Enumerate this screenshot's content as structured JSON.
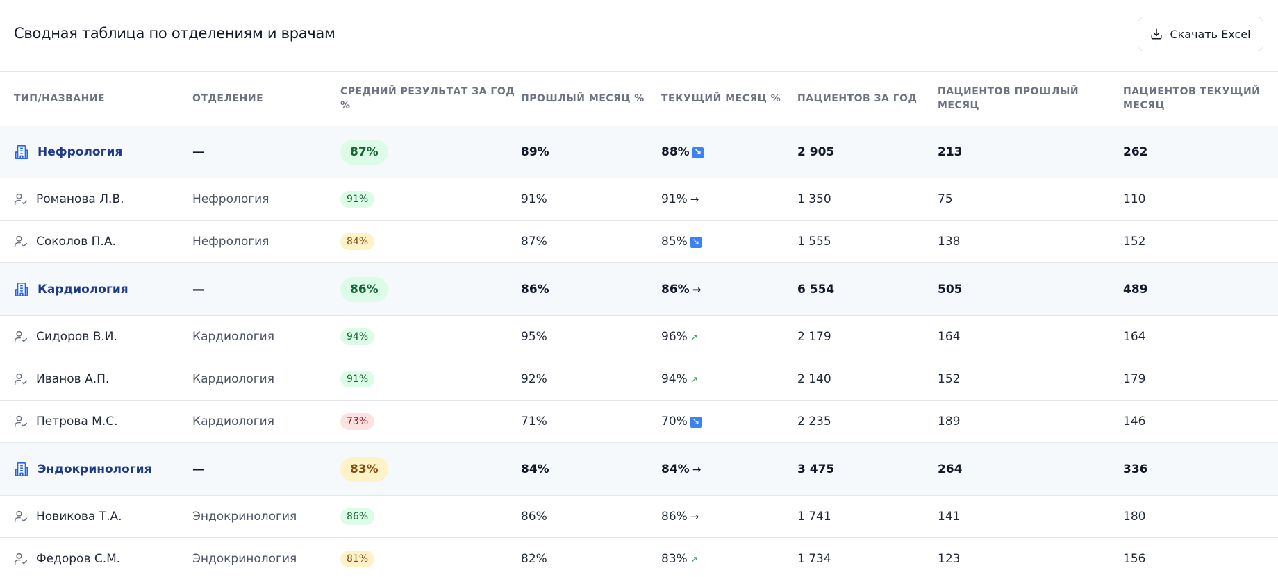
{
  "header": {
    "title": "Сводная таблица по отделениям и врачам",
    "button": "Скачать Excel"
  },
  "table": {
    "columns": [
      "ТИП/НАЗВАНИЕ",
      "ОТДЕЛЕНИЕ",
      "СРЕДНИЙ РЕЗУЛЬТАТ ЗА ГОД %",
      "ПРОШЛЫЙ МЕСЯЦ %",
      "ТЕКУЩИЙ МЕСЯЦ %",
      "ПАЦИЕНТОВ ЗА ГОД",
      "ПАЦИЕНТОВ ПРОШЛЫЙ МЕСЯЦ",
      "ПАЦИЕНТОВ ТЕКУЩИЙ МЕСЯЦ"
    ],
    "rows": [
      {
        "type": "department",
        "name": "Нефрология",
        "department": "—",
        "avg": "87%",
        "last": "89%",
        "current": "88%",
        "trend": "↘",
        "patients_year": "2 905",
        "patients_last": "213",
        "patients_current": "262"
      },
      {
        "type": "doctor",
        "name": "Романова Л.В.",
        "department": "Нефрология",
        "avg": "91%",
        "last": "91%",
        "current": "91%",
        "trend": "→",
        "patients_year": "1 350",
        "patients_last": "75",
        "patients_current": "110"
      },
      {
        "type": "doctor",
        "name": "Соколов П.А.",
        "department": "Нефрология",
        "avg": "84%",
        "last": "87%",
        "current": "85%",
        "trend": "↘",
        "patients_year": "1 555",
        "patients_last": "138",
        "patients_current": "152"
      },
      {
        "type": "department",
        "name": "Кардиология",
        "department": "—",
        "avg": "86%",
        "last": "86%",
        "current": "86%",
        "trend": "→",
        "patients_year": "6 554",
        "patients_last": "505",
        "patients_current": "489"
      },
      {
        "type": "doctor",
        "name": "Сидоров В.И.",
        "department": "Кардиология",
        "avg": "94%",
        "last": "95%",
        "current": "96%",
        "trend": "↗",
        "patients_year": "2 179",
        "patients_last": "164",
        "patients_current": "164"
      },
      {
        "type": "doctor",
        "name": "Иванов А.П.",
        "department": "Кардиология",
        "avg": "91%",
        "last": "92%",
        "current": "94%",
        "trend": "↗",
        "patients_year": "2 140",
        "patients_last": "152",
        "patients_current": "179"
      },
      {
        "type": "doctor",
        "name": "Петрова М.С.",
        "department": "Кардиология",
        "avg": "73%",
        "last": "71%",
        "current": "70%",
        "trend": "↘",
        "patients_year": "2 235",
        "patients_last": "189",
        "patients_current": "146"
      },
      {
        "type": "department",
        "name": "Эндокринология",
        "department": "—",
        "avg": "83%",
        "last": "84%",
        "current": "84%",
        "trend": "→",
        "patients_year": "3 475",
        "patients_last": "264",
        "patients_current": "336"
      },
      {
        "type": "doctor",
        "name": "Новикова Т.А.",
        "department": "Эндокринология",
        "avg": "86%",
        "last": "86%",
        "current": "86%",
        "trend": "→",
        "patients_year": "1 741",
        "patients_last": "141",
        "patients_current": "180"
      },
      {
        "type": "doctor",
        "name": "Федоров С.М.",
        "department": "Эндокринология",
        "avg": "81%",
        "last": "82%",
        "current": "83%",
        "trend": "↗",
        "patients_year": "1 734",
        "patients_last": "123",
        "patients_current": "156"
      }
    ]
  }
}
